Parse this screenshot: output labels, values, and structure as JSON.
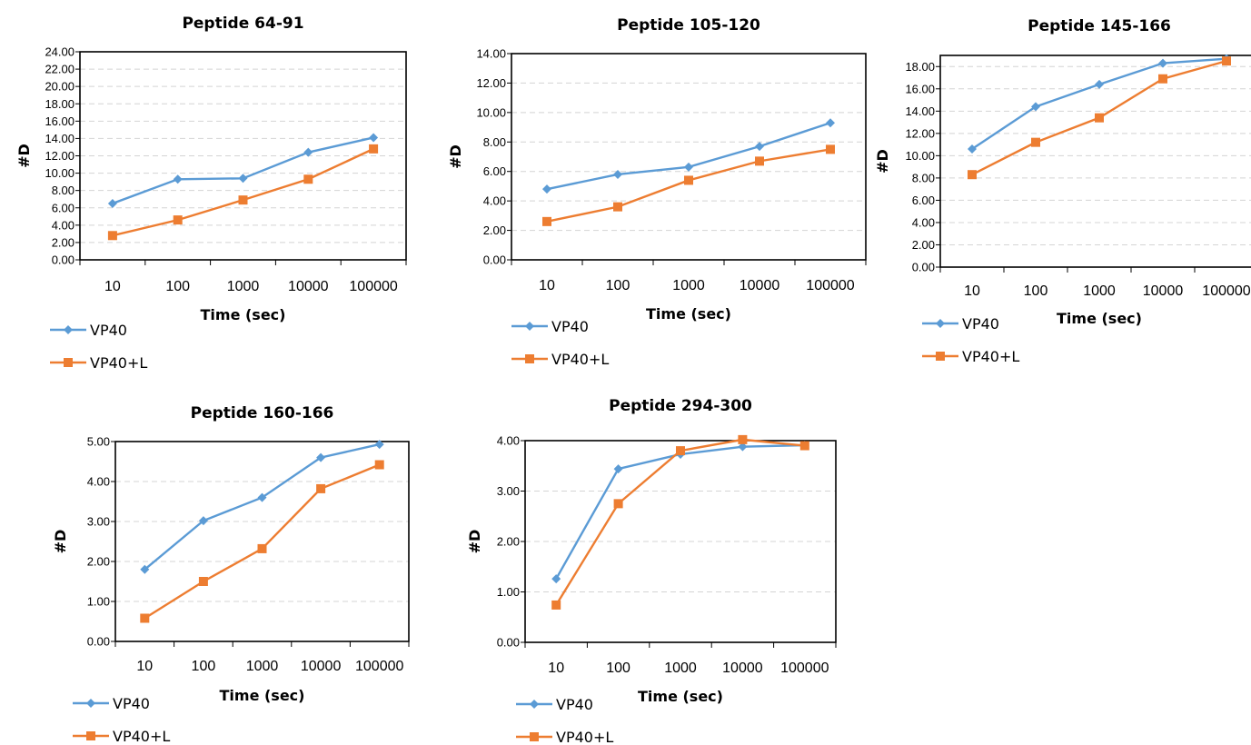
{
  "chart_data": [
    {
      "type": "line",
      "title": "Peptide 64-91",
      "xlabel": "Time (sec)",
      "ylabel": "#D",
      "xscale": "log",
      "x_tick_labels": [
        "10",
        "100",
        "1000",
        "10000",
        "100000"
      ],
      "y_tick_labels": [
        "0.00",
        "2.00",
        "4.00",
        "6.00",
        "8.00",
        "10.00",
        "12.00",
        "14.00",
        "16.00",
        "18.00",
        "20.00",
        "22.00",
        "24.00"
      ],
      "ylim": [
        0,
        24
      ],
      "grid": true,
      "legend": "bottom-left",
      "x": [
        10,
        100,
        1000,
        10000,
        100000
      ],
      "series": [
        {
          "name": "VP40",
          "values": [
            6.5,
            9.3,
            9.4,
            12.4,
            14.1
          ],
          "color": "#5b9bd5",
          "marker": "diamond"
        },
        {
          "name": "VP40+L",
          "values": [
            2.8,
            4.6,
            6.9,
            9.3,
            12.8
          ],
          "color": "#ed7d31",
          "marker": "square"
        }
      ]
    },
    {
      "type": "line",
      "title": "Peptide 105-120",
      "xlabel": "Time (sec)",
      "ylabel": "#D",
      "xscale": "log",
      "x_tick_labels": [
        "10",
        "100",
        "1000",
        "10000",
        "100000"
      ],
      "y_tick_labels": [
        "0.00",
        "2.00",
        "4.00",
        "6.00",
        "8.00",
        "10.00",
        "12.00",
        "14.00"
      ],
      "ylim": [
        0,
        14
      ],
      "grid": true,
      "legend": "bottom-left",
      "x": [
        10,
        100,
        1000,
        10000,
        100000
      ],
      "series": [
        {
          "name": "VP40",
          "values": [
            4.8,
            5.8,
            6.3,
            7.7,
            9.3
          ],
          "color": "#5b9bd5",
          "marker": "diamond"
        },
        {
          "name": "VP40+L",
          "values": [
            2.6,
            3.6,
            5.4,
            6.7,
            7.5
          ],
          "color": "#ed7d31",
          "marker": "square"
        }
      ]
    },
    {
      "type": "line",
      "title": "Peptide 145-166",
      "xlabel": "Time (sec)",
      "ylabel": "#D",
      "xscale": "log",
      "x_tick_labels": [
        "10",
        "100",
        "1000",
        "10000",
        "100000"
      ],
      "y_tick_labels": [
        "0.00",
        "2.00",
        "4.00",
        "6.00",
        "8.00",
        "10.00",
        "12.00",
        "14.00",
        "16.00",
        "18.00"
      ],
      "ylim": [
        0,
        19
      ],
      "grid": true,
      "legend": "bottom-left",
      "x": [
        10,
        100,
        1000,
        10000,
        100000
      ],
      "series": [
        {
          "name": "VP40",
          "values": [
            10.6,
            14.4,
            16.4,
            18.3,
            18.7
          ],
          "color": "#5b9bd5",
          "marker": "diamond"
        },
        {
          "name": "VP40+L",
          "values": [
            8.3,
            11.2,
            13.4,
            16.9,
            18.5
          ],
          "color": "#ed7d31",
          "marker": "square"
        }
      ]
    },
    {
      "type": "line",
      "title": "Peptide 160-166",
      "xlabel": "Time (sec)",
      "ylabel": "#D",
      "xscale": "log",
      "x_tick_labels": [
        "10",
        "100",
        "1000",
        "10000",
        "100000"
      ],
      "y_tick_labels": [
        "0.00",
        "1.00",
        "2.00",
        "3.00",
        "4.00",
        "5.00"
      ],
      "ylim": [
        0,
        5
      ],
      "grid": true,
      "legend": "bottom-left",
      "x": [
        10,
        100,
        1000,
        10000,
        100000
      ],
      "series": [
        {
          "name": "VP40",
          "values": [
            1.8,
            3.02,
            3.6,
            4.6,
            4.93
          ],
          "color": "#5b9bd5",
          "marker": "diamond"
        },
        {
          "name": "VP40+L",
          "values": [
            0.58,
            1.5,
            2.32,
            3.82,
            4.42
          ],
          "color": "#ed7d31",
          "marker": "square"
        }
      ]
    },
    {
      "type": "line",
      "title": "Peptide 294-300",
      "xlabel": "Time (sec)",
      "ylabel": "#D",
      "xscale": "log",
      "x_tick_labels": [
        "10",
        "100",
        "1000",
        "10000",
        "100000"
      ],
      "y_tick_labels": [
        "0.00",
        "1.00",
        "2.00",
        "3.00",
        "4.00"
      ],
      "ylim": [
        0,
        4
      ],
      "grid": true,
      "legend": "bottom-left",
      "x": [
        10,
        100,
        1000,
        10000,
        100000
      ],
      "series": [
        {
          "name": "VP40",
          "values": [
            1.26,
            3.44,
            3.73,
            3.88,
            3.91
          ],
          "color": "#5b9bd5",
          "marker": "diamond"
        },
        {
          "name": "VP40+L",
          "values": [
            0.74,
            2.75,
            3.8,
            4.02,
            3.9
          ],
          "color": "#ed7d31",
          "marker": "square"
        }
      ]
    }
  ]
}
